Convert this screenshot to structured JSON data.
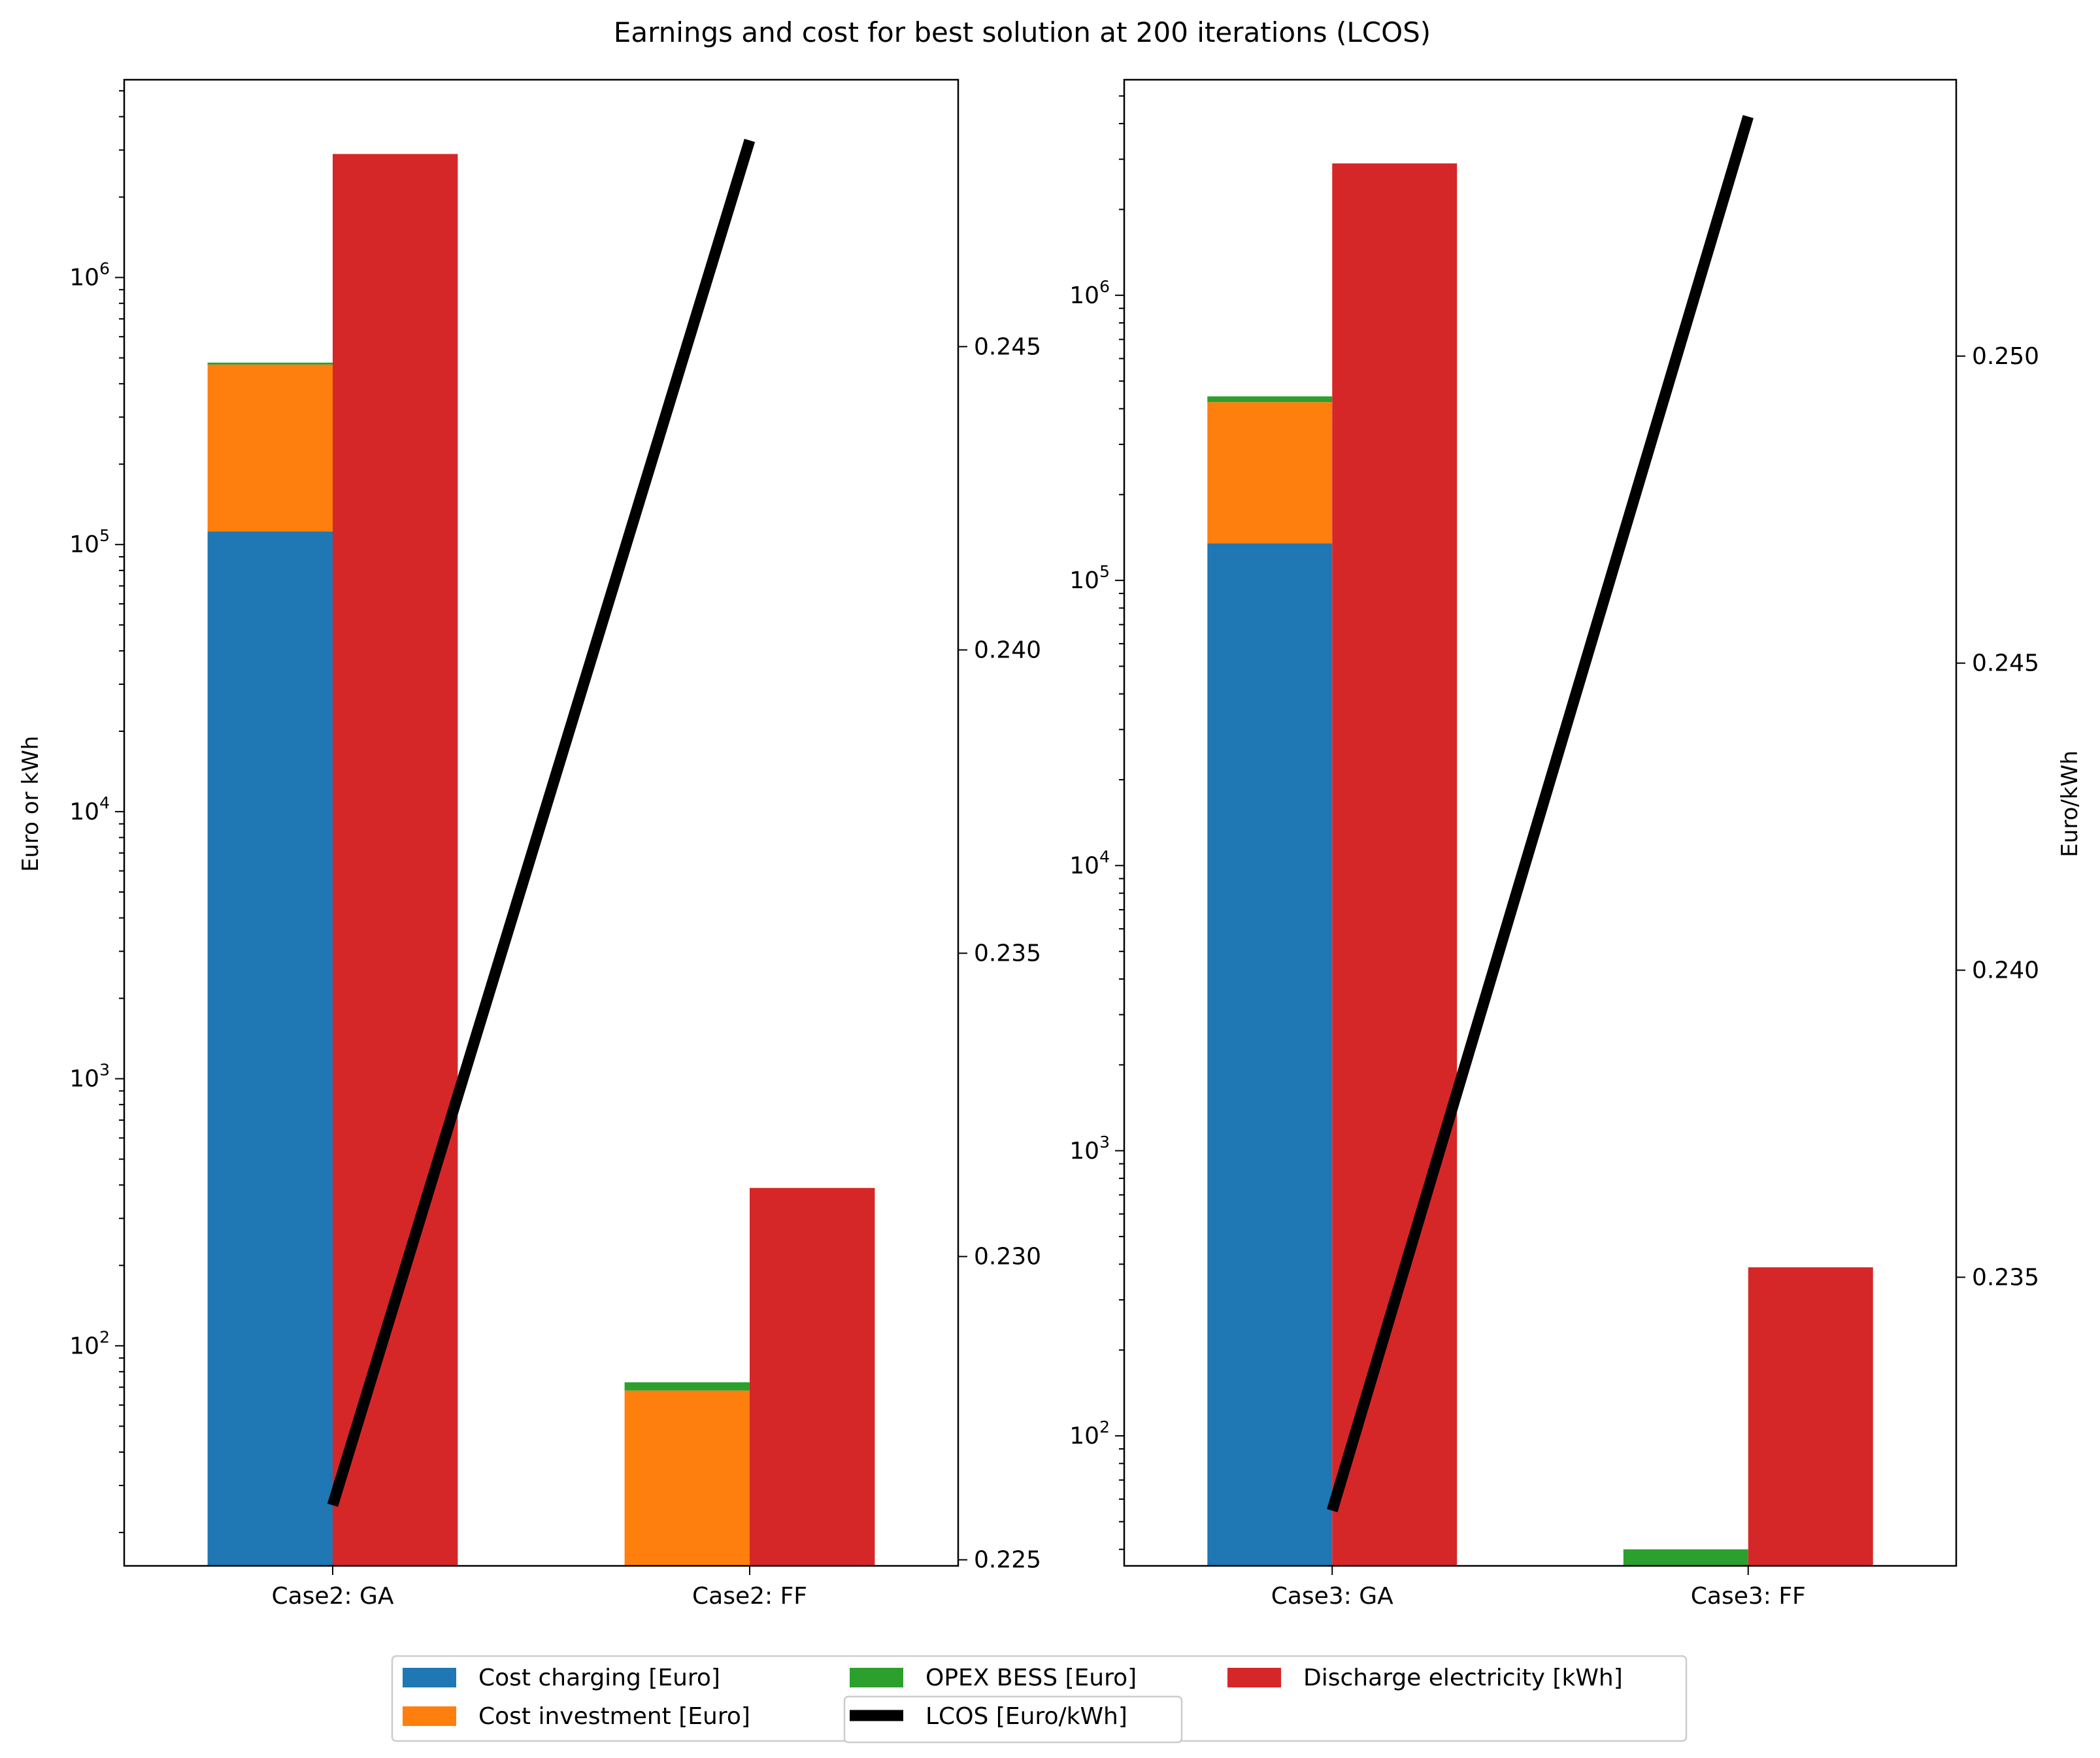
{
  "title": "Earnings and cost for best solution at 200 iterations (LCOS)",
  "left_ylabel": "Euro or kWh",
  "right_ylabel": "Euro/kWh",
  "colors": {
    "Cost charging [Euro]": "#1f77b4",
    "Cost investment [Euro]": "#ff7f0e",
    "OPEX BESS [Euro]": "#2ca02c",
    "Discharge electricity [kWh]": "#d62728",
    "LCOS [Euro/kWh]": "#000000"
  },
  "legend": {
    "placement": "bottom-center",
    "items": [
      {
        "label": "Cost charging [Euro]",
        "kind": "patch"
      },
      {
        "label": "Cost investment [Euro]",
        "kind": "patch"
      },
      {
        "label": "OPEX BESS [Euro]",
        "kind": "patch"
      },
      {
        "label": "LCOS [Euro/kWh]",
        "kind": "line"
      },
      {
        "label": "Discharge electricity [kWh]",
        "kind": "patch"
      }
    ]
  },
  "chart_data": [
    {
      "type": "bar",
      "stacked_with_secondary_line": true,
      "categories": [
        "Case2: GA",
        "Case2: FF"
      ],
      "yscale": "log",
      "ylim": [
        15,
        5500000
      ],
      "y_ticks": [
        100,
        1000,
        10000,
        100000,
        1000000
      ],
      "y_tick_labels": [
        {
          "base": "10",
          "exp": "2"
        },
        {
          "base": "10",
          "exp": "3"
        },
        {
          "base": "10",
          "exp": "4"
        },
        {
          "base": "10",
          "exp": "5"
        },
        {
          "base": "10",
          "exp": "6"
        }
      ],
      "stacked_series": [
        {
          "name": "Cost charging [Euro]",
          "values": [
            112000,
            0
          ]
        },
        {
          "name": "Cost investment [Euro]",
          "values": [
            360000,
            68
          ]
        },
        {
          "name": "OPEX BESS [Euro]",
          "values": [
            8000,
            5
          ]
        }
      ],
      "side_series": {
        "name": "Discharge electricity [kWh]",
        "values": [
          2900000,
          390
        ]
      },
      "secondary_axis": {
        "name": "LCOS [Euro/kWh]",
        "values": [
          0.2259,
          0.2484
        ],
        "ylim": [
          0.2249,
          0.2494
        ],
        "ticks": [
          "0.225",
          "0.230",
          "0.235",
          "0.240",
          "0.245"
        ]
      }
    },
    {
      "type": "bar",
      "stacked_with_secondary_line": true,
      "categories": [
        "Case3: GA",
        "Case3: FF"
      ],
      "yscale": "log",
      "ylim": [
        35,
        5700000
      ],
      "y_ticks": [
        100,
        1000,
        10000,
        100000,
        1000000
      ],
      "y_tick_labels": [
        {
          "base": "10",
          "exp": "2"
        },
        {
          "base": "10",
          "exp": "3"
        },
        {
          "base": "10",
          "exp": "4"
        },
        {
          "base": "10",
          "exp": "5"
        },
        {
          "base": "10",
          "exp": "6"
        }
      ],
      "stacked_series": [
        {
          "name": "Cost charging [Euro]",
          "values": [
            135000,
            0
          ]
        },
        {
          "name": "Cost investment [Euro]",
          "values": [
            287000,
            0
          ]
        },
        {
          "name": "OPEX BESS [Euro]",
          "values": [
            20000,
            40
          ]
        }
      ],
      "side_series": {
        "name": "Discharge electricity [kWh]",
        "values": [
          2900000,
          390
        ]
      },
      "secondary_axis": {
        "name": "LCOS [Euro/kWh]",
        "values": [
          0.2312,
          0.2539
        ],
        "ylim": [
          0.2303,
          0.2545
        ],
        "ticks": [
          "0.235",
          "0.240",
          "0.245",
          "0.250"
        ]
      }
    }
  ]
}
